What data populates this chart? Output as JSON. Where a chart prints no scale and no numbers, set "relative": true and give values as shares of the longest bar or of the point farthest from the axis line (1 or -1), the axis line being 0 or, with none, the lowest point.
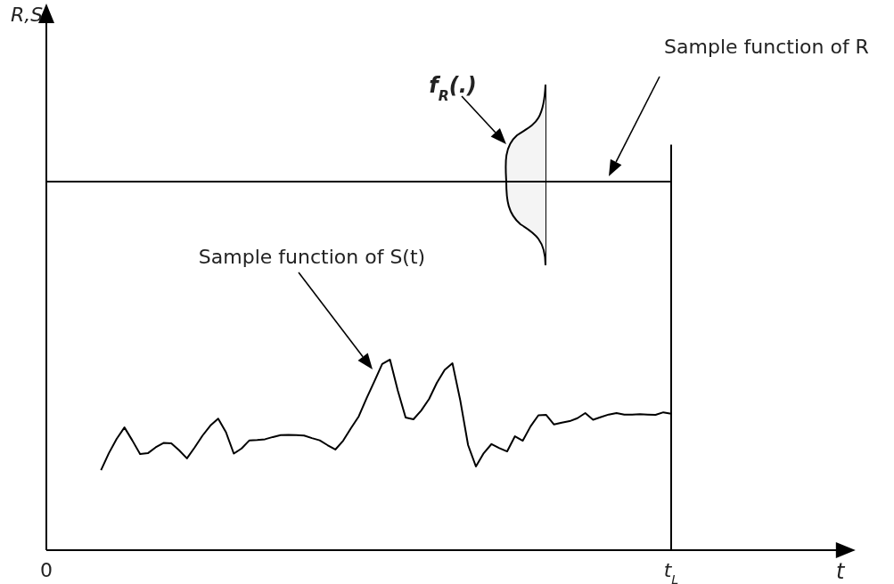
{
  "chart_data": {
    "type": "line",
    "relative": true,
    "marker": "none",
    "line_style": "solid",
    "categories": [
      "0",
      null,
      null,
      null,
      null,
      null,
      null,
      null,
      null,
      null,
      null,
      null,
      null,
      null,
      null,
      null,
      null,
      null,
      null,
      null,
      null,
      null,
      null,
      null,
      null,
      null,
      null,
      null,
      null,
      null,
      null,
      null,
      null,
      null,
      null,
      null,
      null,
      null,
      null,
      null,
      null,
      null,
      null,
      null,
      null,
      null,
      null,
      null,
      null,
      null,
      null,
      null,
      null,
      null,
      null,
      null,
      null,
      null,
      null,
      null,
      null,
      null,
      null,
      null,
      null,
      null,
      null,
      null,
      null,
      null,
      null,
      null,
      null,
      null,
      null,
      null,
      null,
      null,
      null,
      null,
      "t$_{L}$"
    ],
    "ref_lines": [
      {
        "axis": "x",
        "value": "t$_{L}$",
        "color": "#000000"
      }
    ],
    "annotations": [
      "Sample function of R",
      "Sample function of S(t)",
      "f$_{R}$(.)",
      "t",
      "R,S"
    ],
    "series": [
      {
        "color": "#000000",
        "values": [
          1,
          1,
          1,
          1,
          1,
          1,
          1,
          1,
          1,
          1,
          1,
          1,
          1,
          1,
          1,
          1,
          1,
          1,
          1,
          1,
          1,
          1,
          1,
          1,
          1,
          1,
          1,
          1,
          1,
          1,
          1,
          1,
          1,
          1,
          1,
          1,
          1,
          1,
          1,
          1,
          1,
          1,
          1,
          1,
          1,
          1,
          1,
          1,
          1,
          1,
          1,
          1,
          1,
          1,
          1,
          1,
          1,
          1,
          1,
          1,
          1,
          1,
          1,
          1,
          1,
          1,
          1,
          1,
          1,
          1,
          1,
          1,
          1,
          1,
          1,
          1,
          1,
          1,
          1,
          1,
          1
        ]
      },
      {
        "color": "#000000",
        "values": [
          null,
          null,
          null,
          null,
          null,
          null,
          null,
          0.217,
          0.263,
          0.302,
          0.333,
          0.298,
          0.261,
          0.263,
          0.279,
          0.291,
          0.29,
          0.271,
          0.249,
          0.279,
          0.311,
          0.338,
          0.357,
          0.32,
          0.262,
          0.276,
          0.298,
          0.299,
          0.301,
          0.307,
          0.312,
          0.313,
          0.312,
          0.311,
          0.304,
          0.298,
          0.285,
          0.273,
          0.297,
          0.331,
          0.363,
          0.412,
          0.458,
          0.505,
          0.517,
          0.433,
          0.36,
          0.355,
          0.379,
          0.41,
          0.454,
          0.489,
          0.507,
          0.406,
          0.285,
          0.227,
          0.263,
          0.288,
          0.277,
          0.268,
          0.309,
          0.297,
          0.336,
          0.366,
          0.367,
          0.341,
          0.346,
          0.35,
          0.358,
          0.372,
          0.354,
          0.361,
          0.368,
          0.372,
          0.368,
          0.368,
          0.369,
          0.368,
          0.367,
          0.374,
          0.37
        ]
      }
    ]
  }
}
